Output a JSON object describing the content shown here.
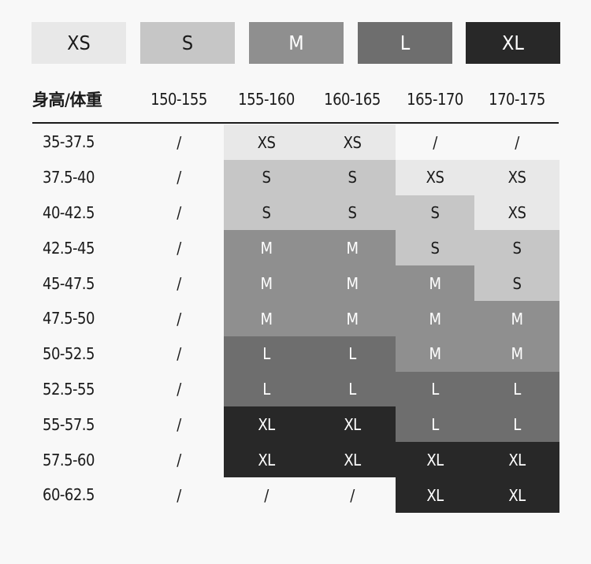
{
  "legend": [
    {
      "label": "XS",
      "color": "#e8e8e8",
      "text_color": "#1a1a1a"
    },
    {
      "label": "S",
      "color": "#c6c6c6",
      "text_color": "#1a1a1a"
    },
    {
      "label": "M",
      "color": "#8f8f8f",
      "text_color": "#ffffff"
    },
    {
      "label": "L",
      "color": "#6e6e6e",
      "text_color": "#ffffff"
    },
    {
      "label": "XL",
      "color": "#282828",
      "text_color": "#ffffff"
    }
  ],
  "header": [
    "身高/体重",
    "150-155",
    "155-160",
    "160-165",
    "165-170",
    "170-175"
  ],
  "rows": [
    {
      "label": "35-37.5",
      "cells": [
        "/",
        "XS",
        "XS",
        "/",
        "/"
      ]
    },
    {
      "label": "37.5-40",
      "cells": [
        "/",
        "S",
        "S",
        "XS",
        "XS"
      ]
    },
    {
      "label": "40-42.5",
      "cells": [
        "/",
        "S",
        "S",
        "S",
        "XS"
      ]
    },
    {
      "label": "42.5-45",
      "cells": [
        "/",
        "M",
        "M",
        "S",
        "S"
      ]
    },
    {
      "label": "45-47.5",
      "cells": [
        "/",
        "M",
        "M",
        "M",
        "S"
      ]
    },
    {
      "label": "47.5-50",
      "cells": [
        "/",
        "M",
        "M",
        "M",
        "M"
      ]
    },
    {
      "label": "50-52.5",
      "cells": [
        "/",
        "L",
        "L",
        "M",
        "M"
      ]
    },
    {
      "label": "52.5-55",
      "cells": [
        "/",
        "L",
        "L",
        "L",
        "L"
      ]
    },
    {
      "label": "55-57.5",
      "cells": [
        "/",
        "XL",
        "XL",
        "L",
        "L"
      ]
    },
    {
      "label": "57.5-60",
      "cells": [
        "/",
        "XL",
        "XL",
        "XL",
        "XL"
      ]
    },
    {
      "label": "60-62.5",
      "cells": [
        "/",
        "/",
        "/",
        "XL",
        "XL"
      ]
    }
  ]
}
